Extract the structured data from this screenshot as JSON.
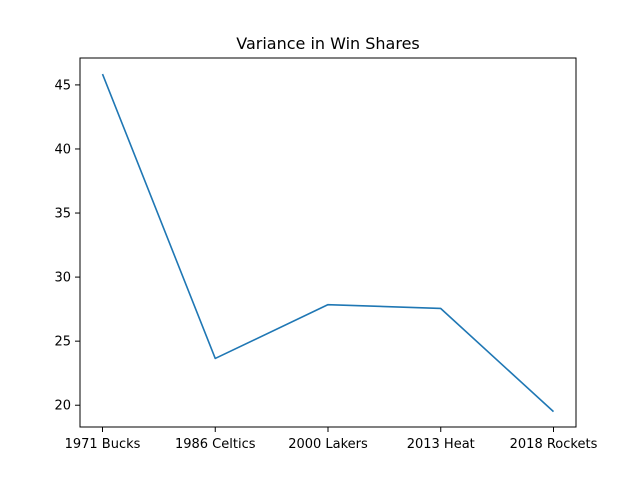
{
  "chart_data": {
    "type": "line",
    "title": "Variance in Win Shares",
    "xlabel": "",
    "ylabel": "",
    "categories": [
      "1971 Bucks",
      "1986 Celtics",
      "2000 Lakers",
      "2013 Heat",
      "2018 Rockets"
    ],
    "series": [
      {
        "values": [
          45.85,
          23.65,
          27.85,
          27.55,
          19.5
        ]
      }
    ],
    "ylim": [
      18.3,
      47.1
    ],
    "yticks": [
      20,
      25,
      30,
      35,
      40,
      45
    ],
    "grid": false,
    "legend": "none",
    "colors": {
      "line": "#1f77b4",
      "axes": "#000000",
      "background": "#ffffff"
    }
  }
}
